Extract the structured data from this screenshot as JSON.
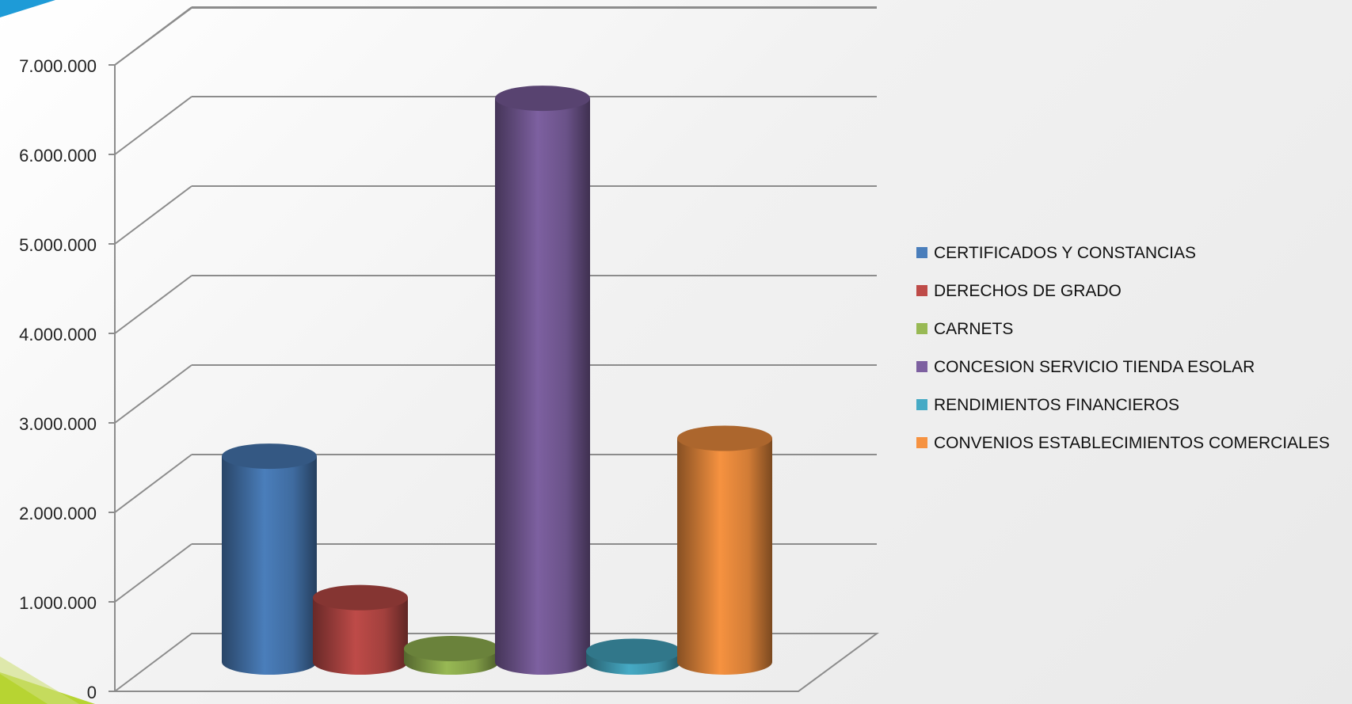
{
  "chart_data": {
    "type": "bar",
    "style": "3d-cylinder",
    "title": "",
    "xlabel": "",
    "ylabel": "",
    "ylim": [
      0,
      7000000
    ],
    "y_ticks": [
      "0",
      "1.000.000",
      "2.000.000",
      "3.000.000",
      "4.000.000",
      "5.000.000",
      "6.000.000",
      "7.000.000"
    ],
    "grid": true,
    "legend_position": "right",
    "series": [
      {
        "name": "CERTIFICADOS Y CONSTANCIAS",
        "value": 2300000,
        "color": "#4A7EBB"
      },
      {
        "name": "DERECHOS DE GRADO",
        "value": 720000,
        "color": "#BE4B48"
      },
      {
        "name": "CARNETS",
        "value": 150000,
        "color": "#98B954"
      },
      {
        "name": "CONCESION SERVICIO TIENDA ESOLAR",
        "value": 6300000,
        "color": "#7D60A0"
      },
      {
        "name": "RENDIMIENTOS FINANCIEROS",
        "value": 120000,
        "color": "#46AAC5"
      },
      {
        "name": "CONVENIOS ESTABLECIMIENTOS COMERCIALES",
        "value": 2500000,
        "color": "#F69240"
      }
    ]
  },
  "decor": {
    "accent_top": "#1E9BD7",
    "accent_bottom": "#B7D432"
  }
}
